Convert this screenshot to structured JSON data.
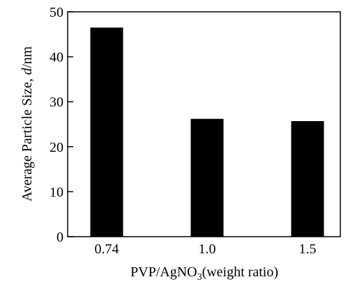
{
  "chart_data": {
    "type": "bar",
    "categories": [
      "0.74",
      "1.0",
      "1.5"
    ],
    "values": [
      46.5,
      26.2,
      25.7
    ],
    "ylim": [
      0,
      50
    ],
    "yticks": [
      "0",
      "10",
      "20",
      "30",
      "40",
      "50"
    ],
    "xlabel": {
      "prefix": "PVP/AgNO",
      "subscript": "3",
      "suffix": "(weight ratio)"
    },
    "ylabel": {
      "prefix": "Average Particle Size, ",
      "italic": "d",
      "suffix": "/nm"
    },
    "bar_color": "#000000",
    "grid": false,
    "legend": "none"
  }
}
